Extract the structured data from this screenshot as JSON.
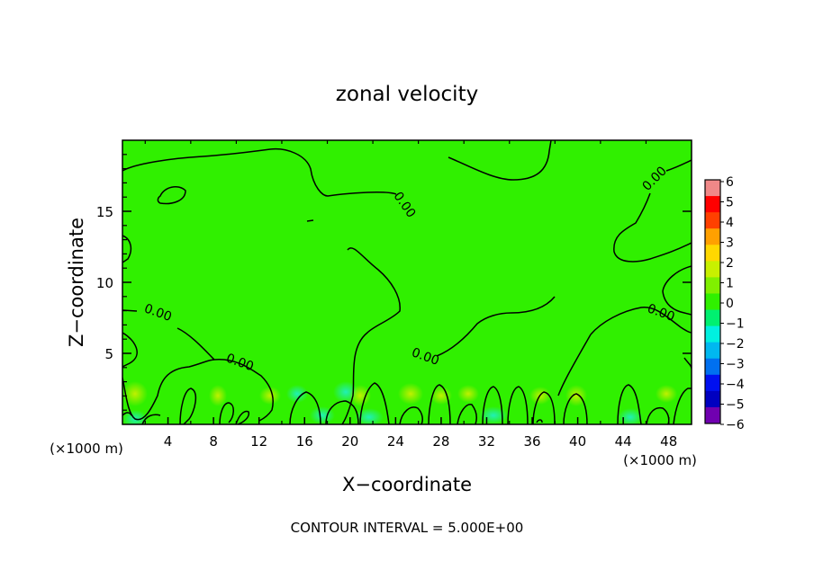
{
  "chart_data": {
    "type": "heatmap",
    "title": "zonal velocity",
    "xlabel": "X−coordinate",
    "ylabel": "Z−coordinate",
    "x_unit_label": "(×1000 m)",
    "y_unit_label": "(×1000 m)",
    "xlim": [
      0,
      50
    ],
    "ylim": [
      0,
      20
    ],
    "x_ticks": [
      "4",
      "8",
      "12",
      "16",
      "20",
      "24",
      "28",
      "32",
      "36",
      "40",
      "44",
      "48"
    ],
    "y_ticks": [
      "5",
      "10",
      "15"
    ],
    "field_value": 0,
    "contour_level_label": "0.00",
    "contour_labels": [
      {
        "text": "0.00",
        "x": 24.5,
        "z": 15.3
      },
      {
        "text": "0.00",
        "x": 47.0,
        "z": 17.1
      },
      {
        "text": "0.00",
        "x": 3.0,
        "z": 7.6
      },
      {
        "text": "0.00",
        "x": 10.2,
        "z": 4.1
      },
      {
        "text": "0.00",
        "x": 26.5,
        "z": 4.5
      },
      {
        "text": "0.00",
        "x": 47.2,
        "z": 7.6
      }
    ],
    "colorbar": {
      "ticks": [
        "6",
        "5",
        "4",
        "3",
        "2",
        "1",
        "0",
        "−1",
        "−2",
        "−3",
        "−4",
        "−5",
        "−6"
      ],
      "colors": [
        "#f08888",
        "#ff0000",
        "#ff4000",
        "#ffa000",
        "#ffd800",
        "#c8f000",
        "#80f000",
        "#30f000",
        "#00f070",
        "#00f0e0",
        "#00b8f0",
        "#0070f0",
        "#0010f0",
        "#0000c0",
        "#7000b0"
      ]
    },
    "footnote": "CONTOUR INTERVAL = 5.000E+00"
  }
}
